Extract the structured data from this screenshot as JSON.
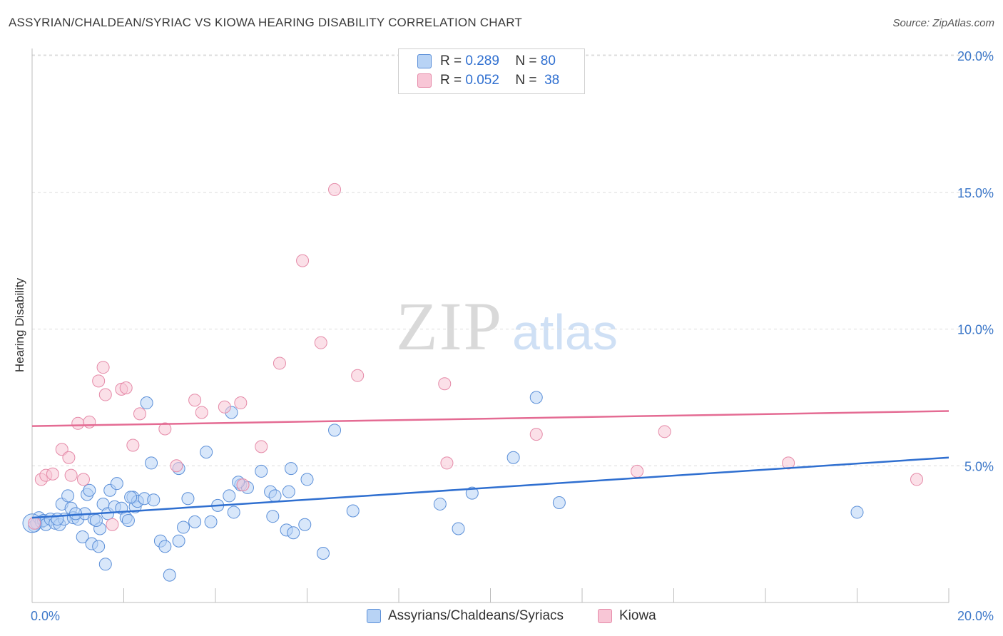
{
  "title": "ASSYRIAN/CHALDEAN/SYRIAC VS KIOWA HEARING DISABILITY CORRELATION CHART",
  "source": "Source: ZipAtlas.com",
  "watermark": {
    "zip": "ZIP",
    "atlas": "atlas"
  },
  "legend": [
    {
      "r_label": "R =",
      "r_value": "0.289",
      "n_label": "N =",
      "n_value": "80"
    },
    {
      "r_label": "R =",
      "r_value": "0.052",
      "n_label": "N =",
      "n_value": "38"
    }
  ],
  "bottom_legend": [
    {
      "label": "Assyrians/Chaldeans/Syriacs"
    },
    {
      "label": "Kiowa"
    }
  ],
  "colors": {
    "blue_fill": "#b8d3f5",
    "blue_stroke": "#5b8fd8",
    "blue_line": "#2f6fd0",
    "pink_fill": "#f8c6d6",
    "pink_stroke": "#e58aa8",
    "pink_line": "#e46b93",
    "tick_label": "#3d78c9"
  },
  "chart_data": {
    "type": "scatter",
    "title": "ASSYRIAN/CHALDEAN/SYRIAC VS KIOWA HEARING DISABILITY CORRELATION CHART",
    "xlabel": "",
    "ylabel": "Hearing Disability",
    "xlim": [
      0,
      20
    ],
    "ylim": [
      0,
      20
    ],
    "x_tick_labels": [
      "0.0%",
      "20.0%"
    ],
    "y_ticks": [
      5,
      10,
      15,
      20
    ],
    "y_tick_labels": [
      "5.0%",
      "10.0%",
      "15.0%",
      "20.0%"
    ],
    "grid": "horizontal dashed",
    "legend_position": "top-center",
    "series": [
      {
        "name": "Assyrians/Chaldeans/Syriacs",
        "trend": {
          "x": [
            0,
            20
          ],
          "y": [
            3.1,
            5.3
          ]
        },
        "points": [
          [
            0.05,
            2.8
          ],
          [
            0.1,
            2.9
          ],
          [
            0.15,
            3.1
          ],
          [
            0.2,
            2.95
          ],
          [
            0.25,
            3.0
          ],
          [
            0.3,
            2.85
          ],
          [
            0.4,
            3.05
          ],
          [
            0.5,
            2.9
          ],
          [
            0.6,
            2.85
          ],
          [
            0.65,
            3.6
          ],
          [
            0.7,
            3.05
          ],
          [
            0.78,
            3.9
          ],
          [
            0.85,
            3.45
          ],
          [
            0.9,
            3.1
          ],
          [
            1.0,
            3.05
          ],
          [
            1.1,
            2.4
          ],
          [
            1.15,
            3.25
          ],
          [
            1.2,
            3.95
          ],
          [
            1.25,
            4.1
          ],
          [
            1.3,
            2.15
          ],
          [
            1.35,
            3.05
          ],
          [
            1.45,
            2.05
          ],
          [
            1.48,
            2.7
          ],
          [
            1.55,
            3.6
          ],
          [
            1.6,
            1.4
          ],
          [
            1.65,
            3.25
          ],
          [
            1.7,
            4.1
          ],
          [
            1.8,
            3.5
          ],
          [
            1.85,
            4.35
          ],
          [
            1.95,
            3.45
          ],
          [
            2.05,
            3.1
          ],
          [
            2.1,
            3.0
          ],
          [
            2.2,
            3.85
          ],
          [
            2.25,
            3.5
          ],
          [
            2.3,
            3.7
          ],
          [
            2.45,
            3.8
          ],
          [
            2.5,
            7.3
          ],
          [
            2.6,
            5.1
          ],
          [
            2.65,
            3.75
          ],
          [
            2.8,
            2.25
          ],
          [
            2.9,
            2.05
          ],
          [
            3.0,
            1.0
          ],
          [
            3.2,
            2.25
          ],
          [
            3.3,
            2.75
          ],
          [
            3.4,
            3.8
          ],
          [
            3.55,
            2.95
          ],
          [
            3.8,
            5.5
          ],
          [
            3.9,
            2.95
          ],
          [
            4.05,
            3.55
          ],
          [
            4.3,
            3.9
          ],
          [
            4.35,
            6.95
          ],
          [
            4.4,
            3.3
          ],
          [
            4.55,
            4.3
          ],
          [
            4.7,
            4.2
          ],
          [
            5.0,
            4.8
          ],
          [
            5.2,
            4.05
          ],
          [
            5.25,
            3.15
          ],
          [
            5.3,
            3.9
          ],
          [
            5.55,
            2.65
          ],
          [
            5.6,
            4.05
          ],
          [
            5.65,
            4.9
          ],
          [
            5.7,
            2.55
          ],
          [
            5.95,
            2.85
          ],
          [
            6.0,
            4.5
          ],
          [
            6.35,
            1.8
          ],
          [
            6.6,
            6.3
          ],
          [
            7.0,
            3.35
          ],
          [
            8.9,
            3.6
          ],
          [
            9.3,
            2.7
          ],
          [
            9.6,
            4.0
          ],
          [
            10.5,
            5.3
          ],
          [
            11.0,
            7.5
          ],
          [
            11.5,
            3.65
          ],
          [
            18.0,
            3.3
          ],
          [
            3.2,
            4.9
          ],
          [
            1.4,
            3.0
          ],
          [
            0.95,
            3.25
          ],
          [
            2.15,
            3.85
          ],
          [
            0.55,
            3.05
          ],
          [
            4.5,
            4.4
          ]
        ]
      },
      {
        "name": "Kiowa",
        "trend": {
          "x": [
            0,
            20
          ],
          "y": [
            6.45,
            7.0
          ]
        },
        "points": [
          [
            0.05,
            2.9
          ],
          [
            0.2,
            4.5
          ],
          [
            0.3,
            4.65
          ],
          [
            0.45,
            4.7
          ],
          [
            0.65,
            5.6
          ],
          [
            0.8,
            5.3
          ],
          [
            0.85,
            4.65
          ],
          [
            1.0,
            6.55
          ],
          [
            1.12,
            4.5
          ],
          [
            1.25,
            6.6
          ],
          [
            1.45,
            8.1
          ],
          [
            1.55,
            8.6
          ],
          [
            1.6,
            7.6
          ],
          [
            1.75,
            2.85
          ],
          [
            1.95,
            7.8
          ],
          [
            2.05,
            7.85
          ],
          [
            2.2,
            5.75
          ],
          [
            2.35,
            6.9
          ],
          [
            2.9,
            6.35
          ],
          [
            3.15,
            5.0
          ],
          [
            3.55,
            7.4
          ],
          [
            3.7,
            6.95
          ],
          [
            4.2,
            7.15
          ],
          [
            4.55,
            7.3
          ],
          [
            4.6,
            4.3
          ],
          [
            5.0,
            5.7
          ],
          [
            5.4,
            8.75
          ],
          [
            5.9,
            12.5
          ],
          [
            6.3,
            9.5
          ],
          [
            6.6,
            15.1
          ],
          [
            7.1,
            8.3
          ],
          [
            9.0,
            8.0
          ],
          [
            9.05,
            5.1
          ],
          [
            11.0,
            6.15
          ],
          [
            13.2,
            4.8
          ],
          [
            13.8,
            6.25
          ],
          [
            16.5,
            5.1
          ],
          [
            19.3,
            4.5
          ]
        ]
      }
    ]
  }
}
